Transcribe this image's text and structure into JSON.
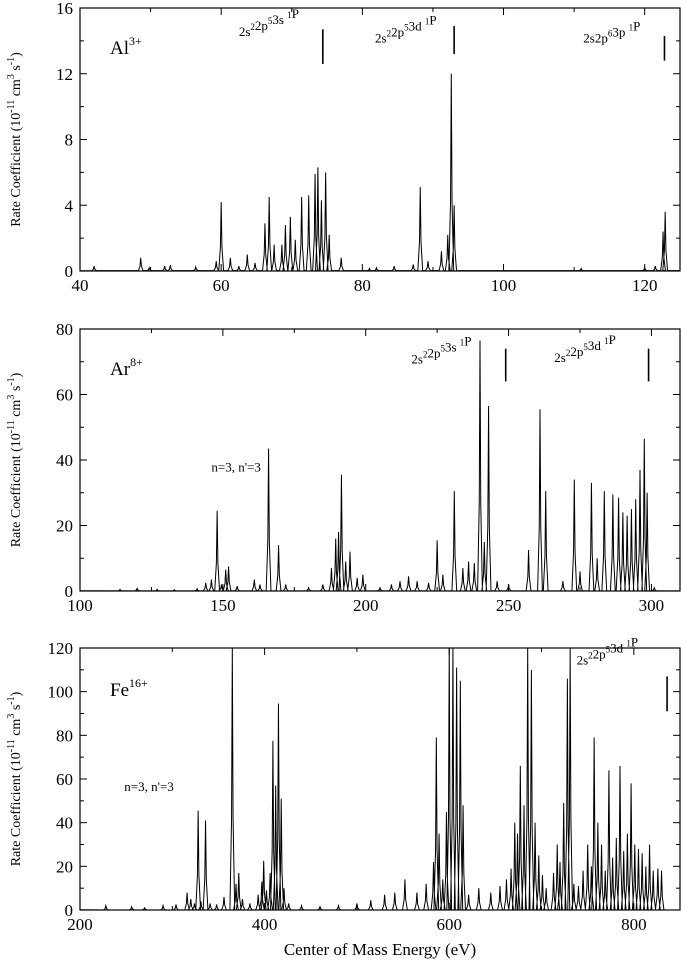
{
  "figure": {
    "xlabel": "Center of Mass Energy (eV)"
  },
  "chart_data": [
    {
      "type": "line",
      "ion": {
        "base": "Al",
        "sup": "3+"
      },
      "ylabel": {
        "pre": "Rate Coefficient (10",
        "e1": "-11",
        "mid": " cm",
        "e2": "3",
        "mid2": " s",
        "e3": "-1",
        "post": ")"
      },
      "xlim": [
        40,
        125
      ],
      "ylim": [
        0,
        16
      ],
      "xticks": [
        40,
        60,
        80,
        100,
        120
      ],
      "yticks": [
        0,
        4,
        8,
        12,
        16
      ],
      "series_limits": [
        {
          "label": "2s²2p⁵3s ¹P",
          "x": 74.4,
          "y_top": 14.7,
          "y_bottom": 12.6
        },
        {
          "label": "2s²2p⁵3d ¹P",
          "x": 93.0,
          "y_top": 14.9,
          "y_bottom": 13.2
        },
        {
          "label": "2s2p⁶3p ¹P",
          "x": 122.8,
          "y_top": 14.3,
          "y_bottom": 12.8
        }
      ],
      "labels_text": [
        {
          "text": "2s²2p⁵3s  ¹P",
          "x": 62.5,
          "y": 14.3
        },
        {
          "text": "2s²2p⁵3d  ¹P",
          "x": 81.8,
          "y": 13.9
        },
        {
          "text": "2s2p⁶3p  ¹P",
          "x": 111.3,
          "y": 13.9
        }
      ],
      "peaks": [
        {
          "x": 42.0,
          "y": 0.3
        },
        {
          "x": 48.6,
          "y": 0.8
        },
        {
          "x": 49.8,
          "y": 0.2
        },
        {
          "x": 52.0,
          "y": 0.3
        },
        {
          "x": 52.8,
          "y": 0.35
        },
        {
          "x": 56.4,
          "y": 0.25
        },
        {
          "x": 59.3,
          "y": 0.6
        },
        {
          "x": 60.0,
          "y": 4.2
        },
        {
          "x": 61.3,
          "y": 0.8
        },
        {
          "x": 62.5,
          "y": 0.3
        },
        {
          "x": 63.7,
          "y": 1.0
        },
        {
          "x": 64.8,
          "y": 0.5
        },
        {
          "x": 66.2,
          "y": 2.9
        },
        {
          "x": 66.8,
          "y": 4.5
        },
        {
          "x": 67.5,
          "y": 1.6
        },
        {
          "x": 68.6,
          "y": 1.6
        },
        {
          "x": 69.1,
          "y": 2.8
        },
        {
          "x": 69.8,
          "y": 3.3
        },
        {
          "x": 70.5,
          "y": 1.9
        },
        {
          "x": 71.4,
          "y": 4.5
        },
        {
          "x": 72.4,
          "y": 4.6
        },
        {
          "x": 73.3,
          "y": 5.9
        },
        {
          "x": 73.7,
          "y": 6.3
        },
        {
          "x": 74.2,
          "y": 4.3
        },
        {
          "x": 74.8,
          "y": 6.0
        },
        {
          "x": 75.3,
          "y": 2.2
        },
        {
          "x": 77.0,
          "y": 0.8
        },
        {
          "x": 81.0,
          "y": 0.15
        },
        {
          "x": 82.0,
          "y": 0.2
        },
        {
          "x": 84.5,
          "y": 0.3
        },
        {
          "x": 87.2,
          "y": 0.4
        },
        {
          "x": 88.2,
          "y": 5.1
        },
        {
          "x": 89.3,
          "y": 0.6
        },
        {
          "x": 91.2,
          "y": 1.2
        },
        {
          "x": 92.1,
          "y": 2.2
        },
        {
          "x": 92.6,
          "y": 12.0
        },
        {
          "x": 93.0,
          "y": 4.0
        },
        {
          "x": 111.0,
          "y": 0.15
        },
        {
          "x": 120.0,
          "y": 0.2
        },
        {
          "x": 121.5,
          "y": 0.3
        },
        {
          "x": 122.6,
          "y": 2.4
        },
        {
          "x": 122.9,
          "y": 3.6
        }
      ]
    },
    {
      "type": "line",
      "ion": {
        "base": "Ar",
        "sup": "8+"
      },
      "ylabel": {
        "pre": "Rate Coefficient (10",
        "e1": "-11",
        "mid": " cm",
        "e2": "3",
        "mid2": " s",
        "e3": "-1",
        "post": ")"
      },
      "xlim": [
        100,
        310
      ],
      "ylim": [
        0,
        80
      ],
      "xticks": [
        100,
        150,
        200,
        250,
        300
      ],
      "yticks": [
        0,
        20,
        40,
        60,
        80
      ],
      "series_limits": [
        {
          "label": "2s²2p⁵3s ¹P",
          "x": 249.0,
          "y_top": 74.0,
          "y_bottom": 64.0
        },
        {
          "label": "2s²2p⁵3d ¹P",
          "x": 299.0,
          "y_top": 74.0,
          "y_bottom": 64.0
        }
      ],
      "labels_text": [
        {
          "text": "2s²2p⁵3s  ¹P",
          "x": 216.0,
          "y": 69.5
        },
        {
          "text": "2s²2p⁵3d  ¹P",
          "x": 266.0,
          "y": 70.0
        },
        {
          "text": "n=3, n'=3",
          "x": 146.0,
          "y": 36.5
        }
      ],
      "peaks": [
        {
          "x": 114.0,
          "y": 0.5
        },
        {
          "x": 120.0,
          "y": 0.8
        },
        {
          "x": 127.0,
          "y": 0.5
        },
        {
          "x": 133.0,
          "y": 0.4
        },
        {
          "x": 141.0,
          "y": 0.7
        },
        {
          "x": 144.0,
          "y": 2.5
        },
        {
          "x": 146.0,
          "y": 3.5
        },
        {
          "x": 148.0,
          "y": 24.5
        },
        {
          "x": 149.5,
          "y": 2.0
        },
        {
          "x": 151.0,
          "y": 6.5
        },
        {
          "x": 152.0,
          "y": 7.5
        },
        {
          "x": 155.0,
          "y": 1.5
        },
        {
          "x": 161.0,
          "y": 3.5
        },
        {
          "x": 163.0,
          "y": 2.0
        },
        {
          "x": 166.0,
          "y": 43.5
        },
        {
          "x": 169.5,
          "y": 14.0
        },
        {
          "x": 172.0,
          "y": 2.0
        },
        {
          "x": 180.0,
          "y": 1.0
        },
        {
          "x": 185.0,
          "y": 2.0
        },
        {
          "x": 188.0,
          "y": 7.0
        },
        {
          "x": 189.5,
          "y": 16.0
        },
        {
          "x": 190.5,
          "y": 18.0
        },
        {
          "x": 191.5,
          "y": 35.5
        },
        {
          "x": 193.0,
          "y": 9.0
        },
        {
          "x": 194.5,
          "y": 12.0
        },
        {
          "x": 197.0,
          "y": 4.0
        },
        {
          "x": 199.0,
          "y": 5.0
        },
        {
          "x": 205.0,
          "y": 1.0
        },
        {
          "x": 209.0,
          "y": 2.0
        },
        {
          "x": 212.0,
          "y": 3.0
        },
        {
          "x": 215.0,
          "y": 4.5
        },
        {
          "x": 218.0,
          "y": 3.0
        },
        {
          "x": 222.0,
          "y": 2.5
        },
        {
          "x": 225.0,
          "y": 15.5
        },
        {
          "x": 227.0,
          "y": 5.0
        },
        {
          "x": 231.0,
          "y": 30.5
        },
        {
          "x": 234.0,
          "y": 7.0
        },
        {
          "x": 236.0,
          "y": 9.0
        },
        {
          "x": 238.0,
          "y": 8.5
        },
        {
          "x": 240.0,
          "y": 76.5
        },
        {
          "x": 241.5,
          "y": 15.0
        },
        {
          "x": 243.0,
          "y": 56.5
        },
        {
          "x": 246.0,
          "y": 3.0
        },
        {
          "x": 250.0,
          "y": 2.0
        },
        {
          "x": 257.0,
          "y": 12.5
        },
        {
          "x": 261.0,
          "y": 55.5
        },
        {
          "x": 263.0,
          "y": 30.5
        },
        {
          "x": 269.0,
          "y": 3.0
        },
        {
          "x": 273.0,
          "y": 34.0
        },
        {
          "x": 275.0,
          "y": 6.0
        },
        {
          "x": 279.0,
          "y": 33.0
        },
        {
          "x": 281.0,
          "y": 10.0
        },
        {
          "x": 283.5,
          "y": 30.5
        },
        {
          "x": 286.5,
          "y": 29.5
        },
        {
          "x": 288.5,
          "y": 28.5
        },
        {
          "x": 290.0,
          "y": 24.0
        },
        {
          "x": 291.5,
          "y": 23.0
        },
        {
          "x": 293.0,
          "y": 25.0
        },
        {
          "x": 294.5,
          "y": 28.0
        },
        {
          "x": 296.0,
          "y": 37.0
        },
        {
          "x": 297.5,
          "y": 46.5
        },
        {
          "x": 298.5,
          "y": 30.0
        },
        {
          "x": 301.0,
          "y": 1.0
        }
      ]
    },
    {
      "type": "line",
      "ion": {
        "base": "Fe",
        "sup": "16+"
      },
      "ylabel": {
        "pre": "Rate Coefficient (10",
        "e1": "-11",
        "mid": " cm",
        "e2": "3",
        "mid2": " s",
        "e3": "-1",
        "post": ")"
      },
      "xlim": [
        200,
        850
      ],
      "ylim": [
        0,
        120
      ],
      "xticks": [
        200,
        400,
        600,
        800
      ],
      "yticks": [
        0,
        20,
        40,
        60,
        80,
        100,
        120
      ],
      "series_limits": [
        {
          "label": "2s²2p⁵3d ¹P",
          "x": 836.0,
          "y_top": 107.0,
          "y_bottom": 91.0
        }
      ],
      "labels_text": [
        {
          "text": "2s²2p⁵3d  ¹P",
          "x": 738.0,
          "y": 112.5
        },
        {
          "text": "n=3, n'=3",
          "x": 248.0,
          "y": 54.5
        }
      ],
      "peaks": [
        {
          "x": 228.0,
          "y": 2.0
        },
        {
          "x": 256.0,
          "y": 1.5
        },
        {
          "x": 270.0,
          "y": 1.0
        },
        {
          "x": 290.0,
          "y": 2.0
        },
        {
          "x": 304.0,
          "y": 2.5
        },
        {
          "x": 316.0,
          "y": 8.0
        },
        {
          "x": 320.0,
          "y": 5.0
        },
        {
          "x": 324.0,
          "y": 3.0
        },
        {
          "x": 328.0,
          "y": 45.5
        },
        {
          "x": 331.0,
          "y": 4.0
        },
        {
          "x": 336.0,
          "y": 41.0
        },
        {
          "x": 341.0,
          "y": 3.0
        },
        {
          "x": 348.0,
          "y": 2.5
        },
        {
          "x": 356.0,
          "y": 6.0
        },
        {
          "x": 365.0,
          "y": 120.0
        },
        {
          "x": 369.0,
          "y": 12.0
        },
        {
          "x": 372.0,
          "y": 17.0
        },
        {
          "x": 376.0,
          "y": 5.0
        },
        {
          "x": 384.0,
          "y": 3.0
        },
        {
          "x": 393.0,
          "y": 7.0
        },
        {
          "x": 397.0,
          "y": 13.0
        },
        {
          "x": 399.0,
          "y": 22.5
        },
        {
          "x": 402.0,
          "y": 9.0
        },
        {
          "x": 406.0,
          "y": 17.0
        },
        {
          "x": 409.0,
          "y": 77.5
        },
        {
          "x": 412.0,
          "y": 57.0
        },
        {
          "x": 415.0,
          "y": 94.5
        },
        {
          "x": 418.0,
          "y": 51.0
        },
        {
          "x": 421.0,
          "y": 10.0
        },
        {
          "x": 426.0,
          "y": 3.0
        },
        {
          "x": 440.0,
          "y": 2.0
        },
        {
          "x": 460.0,
          "y": 1.5
        },
        {
          "x": 480.0,
          "y": 2.0
        },
        {
          "x": 500.0,
          "y": 3.0
        },
        {
          "x": 515.0,
          "y": 4.5
        },
        {
          "x": 530.0,
          "y": 7.0
        },
        {
          "x": 541.0,
          "y": 8.0
        },
        {
          "x": 552.0,
          "y": 14.0
        },
        {
          "x": 565.0,
          "y": 8.0
        },
        {
          "x": 575.0,
          "y": 12.0
        },
        {
          "x": 583.0,
          "y": 22.0
        },
        {
          "x": 586.0,
          "y": 79.0
        },
        {
          "x": 589.0,
          "y": 35.0
        },
        {
          "x": 593.0,
          "y": 14.0
        },
        {
          "x": 597.0,
          "y": 45.0
        },
        {
          "x": 600.0,
          "y": 120.0
        },
        {
          "x": 604.0,
          "y": 120.0
        },
        {
          "x": 608.0,
          "y": 111.0
        },
        {
          "x": 612.0,
          "y": 105.0
        },
        {
          "x": 615.0,
          "y": 48.0
        },
        {
          "x": 621.0,
          "y": 7.0
        },
        {
          "x": 632.0,
          "y": 10.0
        },
        {
          "x": 645.0,
          "y": 8.0
        },
        {
          "x": 655.0,
          "y": 11.0
        },
        {
          "x": 662.0,
          "y": 14.0
        },
        {
          "x": 667.0,
          "y": 19.0
        },
        {
          "x": 671.0,
          "y": 40.0
        },
        {
          "x": 674.0,
          "y": 35.0
        },
        {
          "x": 677.0,
          "y": 66.0
        },
        {
          "x": 681.0,
          "y": 48.0
        },
        {
          "x": 685.0,
          "y": 120.0
        },
        {
          "x": 689.0,
          "y": 110.0
        },
        {
          "x": 693.0,
          "y": 40.0
        },
        {
          "x": 697.0,
          "y": 25.0
        },
        {
          "x": 701.0,
          "y": 16.0
        },
        {
          "x": 705.0,
          "y": 10.0
        },
        {
          "x": 713.0,
          "y": 17.0
        },
        {
          "x": 717.0,
          "y": 30.0
        },
        {
          "x": 720.0,
          "y": 22.0
        },
        {
          "x": 724.0,
          "y": 49.0
        },
        {
          "x": 728.0,
          "y": 106.0
        },
        {
          "x": 731.0,
          "y": 120.0
        },
        {
          "x": 735.0,
          "y": 12.0
        },
        {
          "x": 740.0,
          "y": 11.0
        },
        {
          "x": 745.0,
          "y": 18.0
        },
        {
          "x": 750.0,
          "y": 30.0
        },
        {
          "x": 754.0,
          "y": 20.0
        },
        {
          "x": 757.0,
          "y": 79.0
        },
        {
          "x": 761.0,
          "y": 40.0
        },
        {
          "x": 765.0,
          "y": 30.0
        },
        {
          "x": 769.0,
          "y": 18.0
        },
        {
          "x": 773.0,
          "y": 64.0
        },
        {
          "x": 777.0,
          "y": 24.0
        },
        {
          "x": 781.0,
          "y": 33.0
        },
        {
          "x": 785.0,
          "y": 66.0
        },
        {
          "x": 789.0,
          "y": 27.0
        },
        {
          "x": 793.0,
          "y": 35.0
        },
        {
          "x": 797.0,
          "y": 58.0
        },
        {
          "x": 801.0,
          "y": 30.0
        },
        {
          "x": 805.0,
          "y": 28.0
        },
        {
          "x": 809.0,
          "y": 26.0
        },
        {
          "x": 813.0,
          "y": 20.0
        },
        {
          "x": 817.0,
          "y": 30.0
        },
        {
          "x": 821.0,
          "y": 18.0
        },
        {
          "x": 826.0,
          "y": 19.0
        },
        {
          "x": 830.0,
          "y": 18.0
        }
      ]
    }
  ]
}
